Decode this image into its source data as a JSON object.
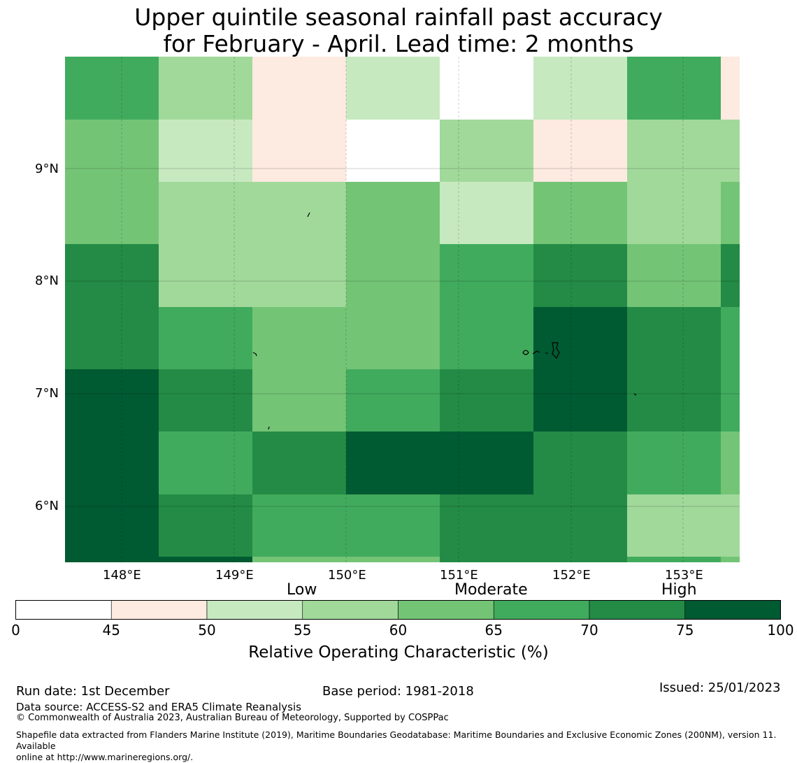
{
  "title": {
    "line1": "Upper quintile seasonal rainfall past accuracy",
    "line2": "for February - April. Lead time: 2 months"
  },
  "map": {
    "lon_ticks": [
      "148°E",
      "149°E",
      "150°E",
      "151°E",
      "152°E",
      "153°E"
    ],
    "lat_ticks": [
      "9°N",
      "8°N",
      "7°N",
      "6°N"
    ]
  },
  "colorbar": {
    "category_labels": [
      "Low",
      "Moderate",
      "High"
    ],
    "tick_labels": [
      "0",
      "45",
      "50",
      "55",
      "60",
      "65",
      "70",
      "75",
      "100"
    ],
    "colors": [
      "#ffffff",
      "#fdeae0",
      "#c7e9c0",
      "#a1d99b",
      "#74c476",
      "#41ab5d",
      "#238b45",
      "#005a32"
    ],
    "axis_label": "Relative Operating Characteristic (%)"
  },
  "footer": {
    "run_date": "Run date: 1st December",
    "base_period": "Base period: 1981-2018",
    "issued": "Issued: 25/01/2023",
    "data_source": "Data source: ACCESS-S2 and ERA5 Climate Reanalysis",
    "copyright": "© Commonwealth of Australia 2023, Australian Bureau of Meteorology, Supported by COSPPac",
    "shapefile_line1": "Shapefile data extracted from Flanders Marine Institute (2019), Maritime Boundaries Geodatabase: Maritime Boundaries and Exclusive Economic Zones (200NM), version 11. Available",
    "shapefile_line2": "online at http://www.marineregions.org/."
  },
  "chart_data": {
    "type": "heatmap",
    "description_units": "ROC score (%) category index into colorbar.colors",
    "cells": [
      {
        "lon": 147.8,
        "lat": 9.75,
        "v": 5
      },
      {
        "lon": 148.7,
        "lat": 9.75,
        "v": 3
      },
      {
        "lon": 149.5,
        "lat": 9.75,
        "v": 1
      },
      {
        "lon": 150.4,
        "lat": 9.75,
        "v": 2
      },
      {
        "lon": 151.2,
        "lat": 9.75,
        "v": 0
      },
      {
        "lon": 152.0,
        "lat": 9.75,
        "v": 2
      },
      {
        "lon": 152.9,
        "lat": 9.75,
        "v": 5
      },
      {
        "lon": 153.4,
        "lat": 9.75,
        "v": 1
      }
    ]
  }
}
